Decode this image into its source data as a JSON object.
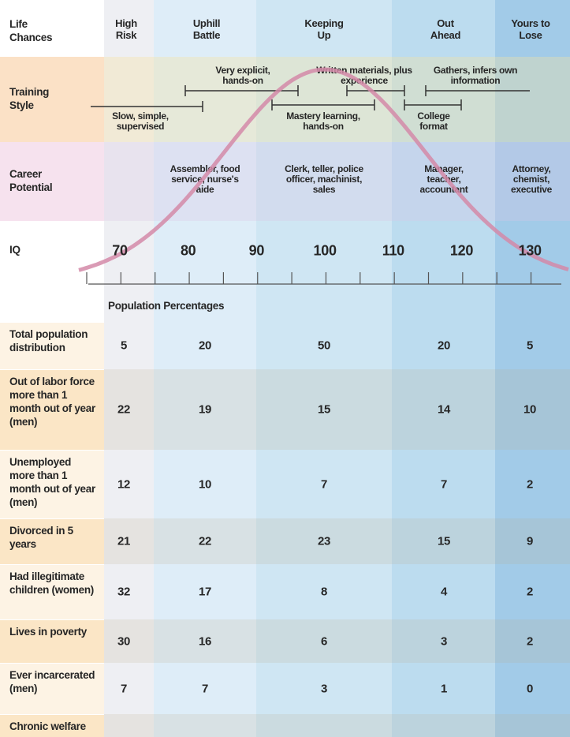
{
  "header": {
    "label": "Life Chances",
    "columns": [
      "High Risk",
      "Uphill Battle",
      "Keeping Up",
      "Out Ahead",
      "Yours to Lose"
    ]
  },
  "training_style": {
    "label": "Training Style",
    "items": [
      "Slow, simple, supervised",
      "Very explicit, hands-on",
      "Mastery learning, hands-on",
      "Written materials, plus experience",
      "College format",
      "Gathers, infers own information"
    ]
  },
  "career_potential": {
    "label": "Career Potential",
    "items": [
      "Assembler, food service, nurse's aide",
      "Clerk, teller, police officer, machinist, sales",
      "Manager, teacher, accountant",
      "Attorney, chemist, executive"
    ]
  },
  "iq": {
    "label": "IQ",
    "ticks": [
      70,
      80,
      90,
      100,
      110,
      120,
      130
    ]
  },
  "population_label": "Population Percentages",
  "rows": [
    {
      "label": "Total population distribution",
      "values": [
        5,
        20,
        50,
        20,
        5
      ]
    },
    {
      "label": "Out of labor force more than 1 month out of year (men)",
      "values": [
        22,
        19,
        15,
        14,
        10
      ]
    },
    {
      "label": "Unemployed more than 1 month out of year (men)",
      "values": [
        12,
        10,
        7,
        7,
        2
      ]
    },
    {
      "label": "Divorced in 5 years",
      "values": [
        21,
        22,
        23,
        15,
        9
      ]
    },
    {
      "label": "Had illegitimate children (women)",
      "values": [
        32,
        17,
        8,
        4,
        2
      ]
    },
    {
      "label": "Lives in poverty",
      "values": [
        30,
        16,
        6,
        3,
        2
      ]
    },
    {
      "label": "Ever incarcerated (men)",
      "values": [
        7,
        7,
        3,
        1,
        0
      ]
    },
    {
      "label": "Chronic welfare"
    }
  ]
}
